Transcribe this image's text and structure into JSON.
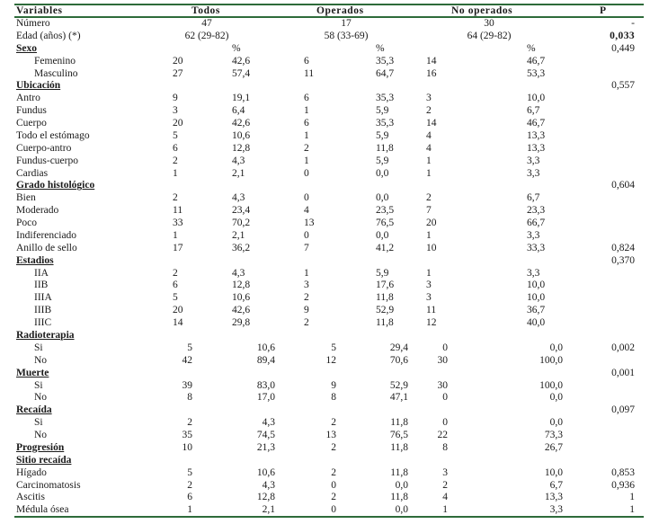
{
  "header": [
    "Variables",
    "Todos",
    "Operados",
    "No operados",
    "P"
  ],
  "rows": [
    {
      "k": "spec",
      "label": "Número",
      "cells": [
        "47",
        "17",
        "30"
      ],
      "p": "-"
    },
    {
      "k": "spec",
      "label": "Edad (años) (*)",
      "cells": [
        "62 (29-82)",
        "58 (33-69)",
        "64 (29-82)"
      ],
      "p": "0,033",
      "pbold": true
    },
    {
      "k": "sec",
      "label": "Sexo",
      "pct": true,
      "p": "0,449"
    },
    {
      "k": "d",
      "label": "Femenino",
      "indent": true,
      "v": [
        "20",
        "42,6",
        "6",
        "35,3",
        "14",
        "46,7"
      ]
    },
    {
      "k": "d",
      "label": "Masculino",
      "indent": true,
      "v": [
        "27",
        "57,4",
        "11",
        "64,7",
        "16",
        "53,3"
      ]
    },
    {
      "k": "sec",
      "label": "Ubicación",
      "p": "0,557"
    },
    {
      "k": "d",
      "label": "Antro",
      "v": [
        "9",
        "19,1",
        "6",
        "35,3",
        "3",
        "10,0"
      ]
    },
    {
      "k": "d",
      "label": "Fundus",
      "v": [
        "3",
        "6,4",
        "1",
        "5,9",
        "2",
        "6,7"
      ]
    },
    {
      "k": "d",
      "label": "Cuerpo",
      "v": [
        "20",
        "42,6",
        "6",
        "35,3",
        "14",
        "46,7"
      ]
    },
    {
      "k": "d",
      "label": "Todo el estómago",
      "v": [
        "5",
        "10,6",
        "1",
        "5,9",
        "4",
        "13,3"
      ]
    },
    {
      "k": "d",
      "label": "Cuerpo-antro",
      "v": [
        "6",
        "12,8",
        "2",
        "11,8",
        "4",
        "13,3"
      ]
    },
    {
      "k": "d",
      "label": "Fundus-cuerpo",
      "v": [
        "2",
        "4,3",
        "1",
        "5,9",
        "1",
        "3,3"
      ]
    },
    {
      "k": "d",
      "label": "Cardias",
      "v": [
        "1",
        "2,1",
        "0",
        "0,0",
        "1",
        "3,3"
      ]
    },
    {
      "k": "sec",
      "label": "Grado histológico",
      "p": "0,604"
    },
    {
      "k": "d",
      "label": "Bien",
      "v": [
        "2",
        "4,3",
        "0",
        "0,0",
        "2",
        "6,7"
      ]
    },
    {
      "k": "d",
      "label": "Moderado",
      "v": [
        "11",
        "23,4",
        "4",
        "23,5",
        "7",
        "23,3"
      ]
    },
    {
      "k": "d",
      "label": "Poco",
      "v": [
        "33",
        "70,2",
        "13",
        "76,5",
        "20",
        "66,7"
      ]
    },
    {
      "k": "d",
      "label": "Indiferenciado",
      "v": [
        "1",
        "2,1",
        "0",
        "0,0",
        "1",
        "3,3"
      ]
    },
    {
      "k": "d",
      "label": "Anillo de sello",
      "v": [
        "17",
        "36,2",
        "7",
        "41,2",
        "10",
        "33,3"
      ],
      "p": "0,824"
    },
    {
      "k": "sec",
      "label": "Estadios",
      "p": "0,370"
    },
    {
      "k": "d",
      "label": "IIA",
      "indent": true,
      "v": [
        "2",
        "4,3",
        "1",
        "5,9",
        "1",
        "3,3"
      ]
    },
    {
      "k": "d",
      "label": "IIB",
      "indent": true,
      "v": [
        "6",
        "12,8",
        "3",
        "17,6",
        "3",
        "10,0"
      ]
    },
    {
      "k": "d",
      "label": "IIIA",
      "indent": true,
      "v": [
        "5",
        "10,6",
        "2",
        "11,8",
        "3",
        "10,0"
      ]
    },
    {
      "k": "d",
      "label": "IIIB",
      "indent": true,
      "v": [
        "20",
        "42,6",
        "9",
        "52,9",
        "11",
        "36,7"
      ]
    },
    {
      "k": "d",
      "label": "IIIC",
      "indent": true,
      "v": [
        "14",
        "29,8",
        "2",
        "11,8",
        "12",
        "40,0"
      ]
    },
    {
      "k": "sec",
      "label": "Radioterapia"
    },
    {
      "k": "d2",
      "label": "Si",
      "indent": true,
      "v": [
        "5",
        "10,6",
        "5",
        "29,4",
        "0",
        "0,0"
      ],
      "p": "0,002"
    },
    {
      "k": "d2",
      "label": "No",
      "indent": true,
      "v": [
        "42",
        "89,4",
        "12",
        "70,6",
        "30",
        "100,0"
      ]
    },
    {
      "k": "sec",
      "label": "Muerte",
      "p": "0,001"
    },
    {
      "k": "d2",
      "label": "Si",
      "indent": true,
      "v": [
        "39",
        "83,0",
        "9",
        "52,9",
        "30",
        "100,0"
      ]
    },
    {
      "k": "d2",
      "label": "No",
      "indent": true,
      "v": [
        "8",
        "17,0",
        "8",
        "47,1",
        "0",
        "0,0"
      ]
    },
    {
      "k": "sec",
      "label": "Recaída",
      "p": "0,097"
    },
    {
      "k": "d2",
      "label": "Si",
      "indent": true,
      "v": [
        "2",
        "4,3",
        "2",
        "11,8",
        "0",
        "0,0"
      ]
    },
    {
      "k": "d2",
      "label": "No",
      "indent": true,
      "v": [
        "35",
        "74,5",
        "13",
        "76,5",
        "22",
        "73,3"
      ]
    },
    {
      "k": "secd",
      "label": "Progresión",
      "v": [
        "10",
        "21,3",
        "2",
        "11,8",
        "8",
        "26,7"
      ]
    },
    {
      "k": "sec",
      "label": "Sitio recaída"
    },
    {
      "k": "d2",
      "label": "Hígado",
      "v": [
        "5",
        "10,6",
        "2",
        "11,8",
        "3",
        "10,0"
      ],
      "p": "0,853"
    },
    {
      "k": "d2",
      "label": "Carcinomatosis",
      "v": [
        "2",
        "4,3",
        "0",
        "0,0",
        "2",
        "6,7"
      ],
      "p": "0,936"
    },
    {
      "k": "d2",
      "label": "Ascitis",
      "v": [
        "6",
        "12,8",
        "2",
        "11,8",
        "4",
        "13,3"
      ],
      "p": "1"
    },
    {
      "k": "d2",
      "label": "Médula ósea",
      "v": [
        "1",
        "2,1",
        "0",
        "0,0",
        "1",
        "3,3"
      ],
      "p": "1"
    }
  ]
}
